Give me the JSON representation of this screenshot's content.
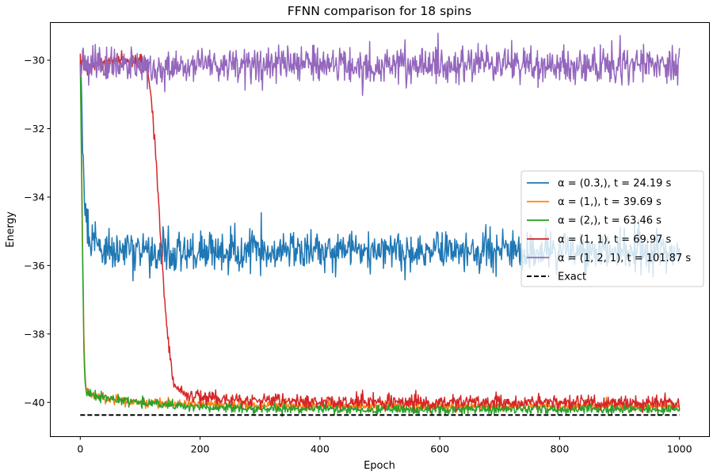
{
  "chart_data": {
    "type": "line",
    "title": "FFNN comparison for 18 spins",
    "xlabel": "Epoch",
    "ylabel": "Energy",
    "xlim": [
      -50,
      1050
    ],
    "ylim": [
      -41.0,
      -28.9
    ],
    "xticks": [
      0,
      200,
      400,
      600,
      800,
      1000
    ],
    "yticks": [
      -40,
      -38,
      -36,
      -34,
      -32,
      -30
    ],
    "ytick_labels": [
      "−40",
      "−38",
      "−36",
      "−34",
      "−32",
      "−30"
    ],
    "grid": false,
    "legend_position": "center-right",
    "series": [
      {
        "name": "α = (0.3,), t = 24.19 s",
        "color": "#1f77b4",
        "x": [
          0,
          3,
          6,
          10,
          15,
          20,
          30,
          40,
          60,
          100,
          150,
          200,
          250,
          300,
          350,
          400,
          450,
          500,
          550,
          600,
          650,
          700,
          750,
          800,
          850,
          890,
          950,
          1000
        ],
        "y": [
          -30.2,
          -31.5,
          -33.5,
          -34.6,
          -35.1,
          -35.3,
          -35.4,
          -35.5,
          -35.6,
          -35.6,
          -35.6,
          -35.6,
          -35.6,
          -35.6,
          -35.6,
          -35.6,
          -35.6,
          -35.6,
          -35.6,
          -35.6,
          -35.6,
          -35.6,
          -35.6,
          -35.6,
          -35.6,
          -35.6,
          -35.6,
          -35.6
        ],
        "noise": 0.3
      },
      {
        "name": "α = (1,), t = 39.69 s",
        "color": "#ff7f0e",
        "x": [
          0,
          2,
          4,
          6,
          8,
          10,
          15,
          20,
          40,
          100,
          200,
          300,
          500,
          700,
          1000
        ],
        "y": [
          -29.8,
          -32.5,
          -35.5,
          -38.0,
          -39.2,
          -39.6,
          -39.7,
          -39.8,
          -39.9,
          -40.0,
          -40.05,
          -40.1,
          -40.1,
          -40.1,
          -40.1
        ],
        "noise": 0.07
      },
      {
        "name": "α = (2,), t = 63.46 s",
        "color": "#2ca02c",
        "x": [
          0,
          2,
          4,
          6,
          8,
          10,
          15,
          20,
          40,
          100,
          200,
          300,
          500,
          700,
          1000
        ],
        "y": [
          -30.0,
          -33.0,
          -36.0,
          -38.5,
          -39.4,
          -39.7,
          -39.75,
          -39.8,
          -39.85,
          -40.0,
          -40.15,
          -40.2,
          -40.2,
          -40.2,
          -40.2
        ],
        "noise": 0.07
      },
      {
        "name": "α = (1, 1), t = 69.97 s",
        "color": "#d62728",
        "x": [
          0,
          5,
          10,
          30,
          60,
          90,
          110,
          118,
          125,
          132,
          140,
          148,
          155,
          165,
          180,
          200,
          250,
          300,
          400,
          500,
          600,
          700,
          800,
          900,
          1000
        ],
        "y": [
          -29.9,
          -30.1,
          -30.2,
          -30.1,
          -30.0,
          -30.0,
          -30.1,
          -31.0,
          -32.5,
          -34.5,
          -36.8,
          -38.5,
          -39.4,
          -39.7,
          -39.8,
          -39.85,
          -39.9,
          -39.95,
          -40.0,
          -40.0,
          -40.0,
          -40.0,
          -40.0,
          -40.0,
          -40.0
        ],
        "noise": 0.1
      },
      {
        "name": "α = (1, 2, 1), t = 101.87 s",
        "color": "#9467bd",
        "x": [
          0,
          10,
          100,
          200,
          300,
          400,
          500,
          600,
          700,
          800,
          900,
          1000
        ],
        "y": [
          -30.1,
          -30.15,
          -30.15,
          -30.15,
          -30.15,
          -30.15,
          -30.15,
          -30.15,
          -30.15,
          -30.15,
          -30.15,
          -30.15
        ],
        "noise": 0.28
      }
    ],
    "reference_lines": [
      {
        "name": "Exact",
        "color": "#000000",
        "style": "dashed",
        "y": -40.37,
        "x": [
          0,
          1000
        ]
      }
    ]
  }
}
